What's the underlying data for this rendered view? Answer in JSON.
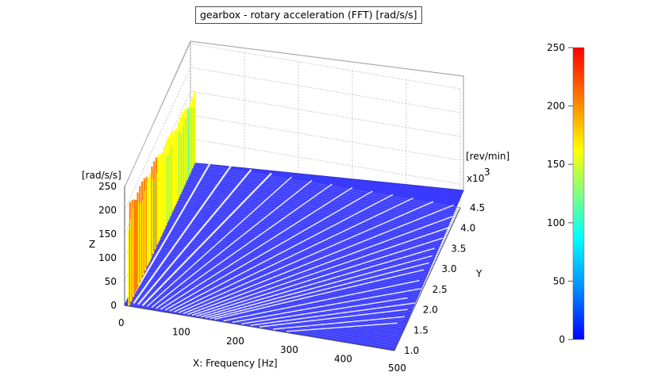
{
  "chart_data": {
    "type": "surface-3d-waterfall",
    "title": "gearbox - rotary acceleration (FFT) [rad/s/s]",
    "x_axis": {
      "label": "X: Frequency [Hz]",
      "ticks": [
        "0",
        "100",
        "200",
        "300",
        "400",
        "500"
      ],
      "range": [
        0,
        500
      ]
    },
    "y_axis": {
      "label": "Y",
      "unit": "[rev/min]",
      "multiplier": "x10",
      "multiplier_exp": "3",
      "ticks": [
        "1.0",
        "1.5",
        "2.0",
        "2.5",
        "3.0",
        "3.5",
        "4.0",
        "4.5"
      ],
      "range": [
        1.0,
        4.5
      ]
    },
    "z_axis": {
      "label": "Z",
      "unit": "[rad/s/s]",
      "ticks": [
        "0",
        "50",
        "100",
        "150",
        "200",
        "250"
      ],
      "range": [
        0,
        250
      ]
    },
    "colorbar": {
      "ticks": [
        "0",
        "50",
        "100",
        "150",
        "200",
        "250"
      ],
      "range": [
        0,
        250
      ],
      "colors": [
        "#0000ff",
        "#00a0ff",
        "#00ffff",
        "#7fff7f",
        "#ffff00",
        "#ff8000",
        "#ff0000"
      ]
    },
    "order_lines": [
      1,
      2,
      3,
      4,
      5,
      6,
      7,
      8,
      9,
      10,
      11,
      12,
      13,
      14,
      15,
      16,
      17,
      18,
      19,
      20,
      22,
      24,
      26,
      28,
      30,
      33,
      36
    ],
    "order_line_color": "#ffffff",
    "surface_color": "#4a4aff",
    "peak_ridge": {
      "frequency_hz": 8,
      "amplitude_at_min_speed": 215,
      "amplitude_at_max_speed": 150
    }
  }
}
